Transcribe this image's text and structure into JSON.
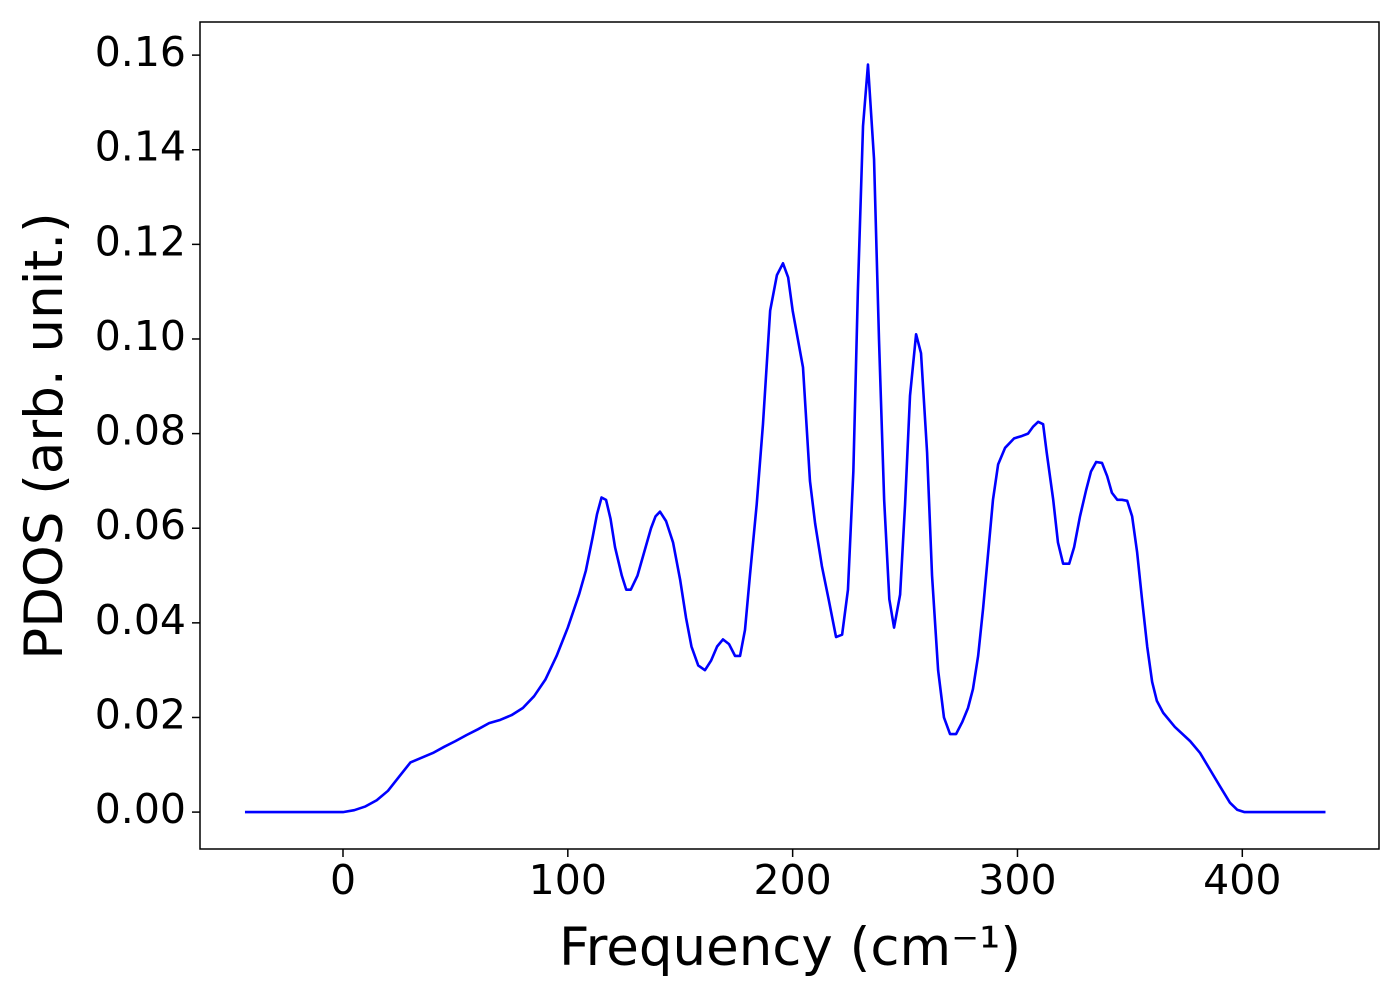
{
  "chart_data": {
    "type": "line",
    "x_label": "Frequency (cm⁻¹)",
    "y_label": "PDOS (arb. unit.)",
    "xlim": [
      -63.6,
      460.8
    ],
    "ylim": [
      -0.0078,
      0.167
    ],
    "xticks": [
      0,
      100,
      200,
      300,
      400
    ],
    "yticks": [
      {
        "value": 0,
        "label": "0.00"
      },
      0.02,
      0.04,
      0.06,
      0.08,
      {
        "value": 0.1,
        "label": "0.10"
      },
      0.12,
      0.14,
      0.16
    ],
    "grid": false,
    "series": [
      {
        "color": "#0000ff",
        "x": [
          -43.6,
          -20,
          0,
          5,
          10,
          15,
          20,
          25,
          30,
          35,
          40,
          45,
          50,
          55,
          60,
          65,
          70,
          75,
          80,
          85,
          90,
          95,
          100,
          105,
          108,
          111,
          113,
          115,
          117,
          119,
          121,
          124,
          126,
          128,
          131,
          134,
          137,
          139,
          141,
          143.7,
          146.8,
          150,
          152.6,
          155,
          158,
          161,
          163.7,
          166.4,
          169,
          171.7,
          174.4,
          176.6,
          178.8,
          181,
          184,
          186.8,
          190,
          193,
          195.7,
          198,
          200,
          204.6,
          207.7,
          210,
          213,
          216,
          219.3,
          222,
          224.6,
          227,
          229,
          231.3,
          233.5,
          236.2,
          238.4,
          240.7,
          243,
          245.1,
          247.8,
          250,
          252.2,
          254.9,
          257.1,
          259.8,
          262,
          264.7,
          267.3,
          270,
          272.7,
          275.4,
          278,
          280.2,
          282.5,
          284.7,
          287,
          289.1,
          291.4,
          294.5,
          298.5,
          302,
          304.7,
          307,
          309.2,
          311.4,
          313,
          315.9,
          318,
          320.3,
          323,
          325.2,
          327.8,
          330.5,
          332.7,
          335,
          337.6,
          339.9,
          342,
          344.4,
          346.5,
          348.8,
          351,
          353.2,
          355.4,
          357.7,
          359.9,
          362,
          364.8,
          370,
          376.8,
          381.2,
          385.6,
          390,
          394.5,
          397.7,
          401,
          437
        ],
        "values": [
          0,
          0,
          0,
          0.0004,
          0.0012,
          0.0025,
          0.0045,
          0.0075,
          0.0105,
          0.0115,
          0.0125,
          0.0138,
          0.015,
          0.0163,
          0.0175,
          0.0188,
          0.0195,
          0.0205,
          0.022,
          0.0245,
          0.028,
          0.033,
          0.039,
          0.046,
          0.051,
          0.058,
          0.063,
          0.0665,
          0.066,
          0.062,
          0.056,
          0.05,
          0.047,
          0.047,
          0.05,
          0.055,
          0.06,
          0.0625,
          0.0635,
          0.0615,
          0.057,
          0.049,
          0.041,
          0.035,
          0.031,
          0.03,
          0.032,
          0.035,
          0.0365,
          0.0355,
          0.033,
          0.033,
          0.0385,
          0.05,
          0.065,
          0.082,
          0.106,
          0.1135,
          0.116,
          0.113,
          0.106,
          0.094,
          0.07,
          0.061,
          0.052,
          0.045,
          0.037,
          0.0375,
          0.047,
          0.072,
          0.11,
          0.145,
          0.158,
          0.138,
          0.1,
          0.066,
          0.045,
          0.039,
          0.046,
          0.065,
          0.088,
          0.101,
          0.097,
          0.076,
          0.05,
          0.03,
          0.02,
          0.0165,
          0.0165,
          0.019,
          0.022,
          0.026,
          0.033,
          0.043,
          0.055,
          0.066,
          0.0735,
          0.077,
          0.079,
          0.0795,
          0.08,
          0.0815,
          0.0825,
          0.082,
          0.076,
          0.066,
          0.057,
          0.0525,
          0.0525,
          0.056,
          0.0625,
          0.068,
          0.072,
          0.074,
          0.0738,
          0.071,
          0.0675,
          0.066,
          0.066,
          0.0658,
          0.0625,
          0.055,
          0.045,
          0.035,
          0.0275,
          0.0235,
          0.021,
          0.018,
          0.015,
          0.0125,
          0.009,
          0.0055,
          0.002,
          0.0005,
          0,
          0
        ]
      }
    ]
  }
}
